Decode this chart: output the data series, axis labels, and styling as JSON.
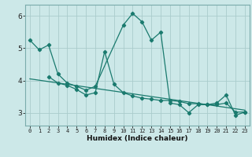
{
  "title": "",
  "xlabel": "Humidex (Indice chaleur)",
  "bg_color": "#cce8e8",
  "grid_color": "#aacccc",
  "line_color": "#1a7a6e",
  "xlim": [
    -0.5,
    23.5
  ],
  "ylim": [
    2.6,
    6.35
  ],
  "xticks": [
    0,
    1,
    2,
    3,
    4,
    5,
    6,
    7,
    8,
    9,
    10,
    11,
    12,
    13,
    14,
    15,
    16,
    17,
    18,
    19,
    20,
    21,
    22,
    23
  ],
  "yticks": [
    3,
    4,
    5,
    6
  ],
  "series1_x": [
    0,
    1,
    2,
    3,
    4,
    5,
    6,
    7,
    10,
    11,
    12,
    13,
    14,
    15,
    16,
    17,
    18,
    19,
    20,
    21,
    22,
    23
  ],
  "series1_y": [
    5.25,
    4.95,
    5.1,
    4.2,
    3.92,
    3.82,
    3.7,
    3.82,
    5.72,
    6.08,
    5.82,
    5.25,
    5.5,
    3.3,
    3.25,
    3.0,
    3.25,
    3.25,
    3.3,
    3.55,
    2.92,
    3.02
  ],
  "series2_x": [
    2,
    3,
    4,
    5,
    6,
    7,
    8,
    9,
    10,
    11,
    12,
    13,
    14,
    15,
    16,
    17,
    18,
    19,
    20,
    21,
    22,
    23
  ],
  "series2_y": [
    4.12,
    3.92,
    3.85,
    3.72,
    3.55,
    3.62,
    4.9,
    3.88,
    3.62,
    3.52,
    3.45,
    3.42,
    3.38,
    3.38,
    3.35,
    3.28,
    3.28,
    3.25,
    3.25,
    3.3,
    3.02,
    3.02
  ],
  "trend_x": [
    0,
    23
  ],
  "trend_y": [
    4.05,
    3.08
  ]
}
